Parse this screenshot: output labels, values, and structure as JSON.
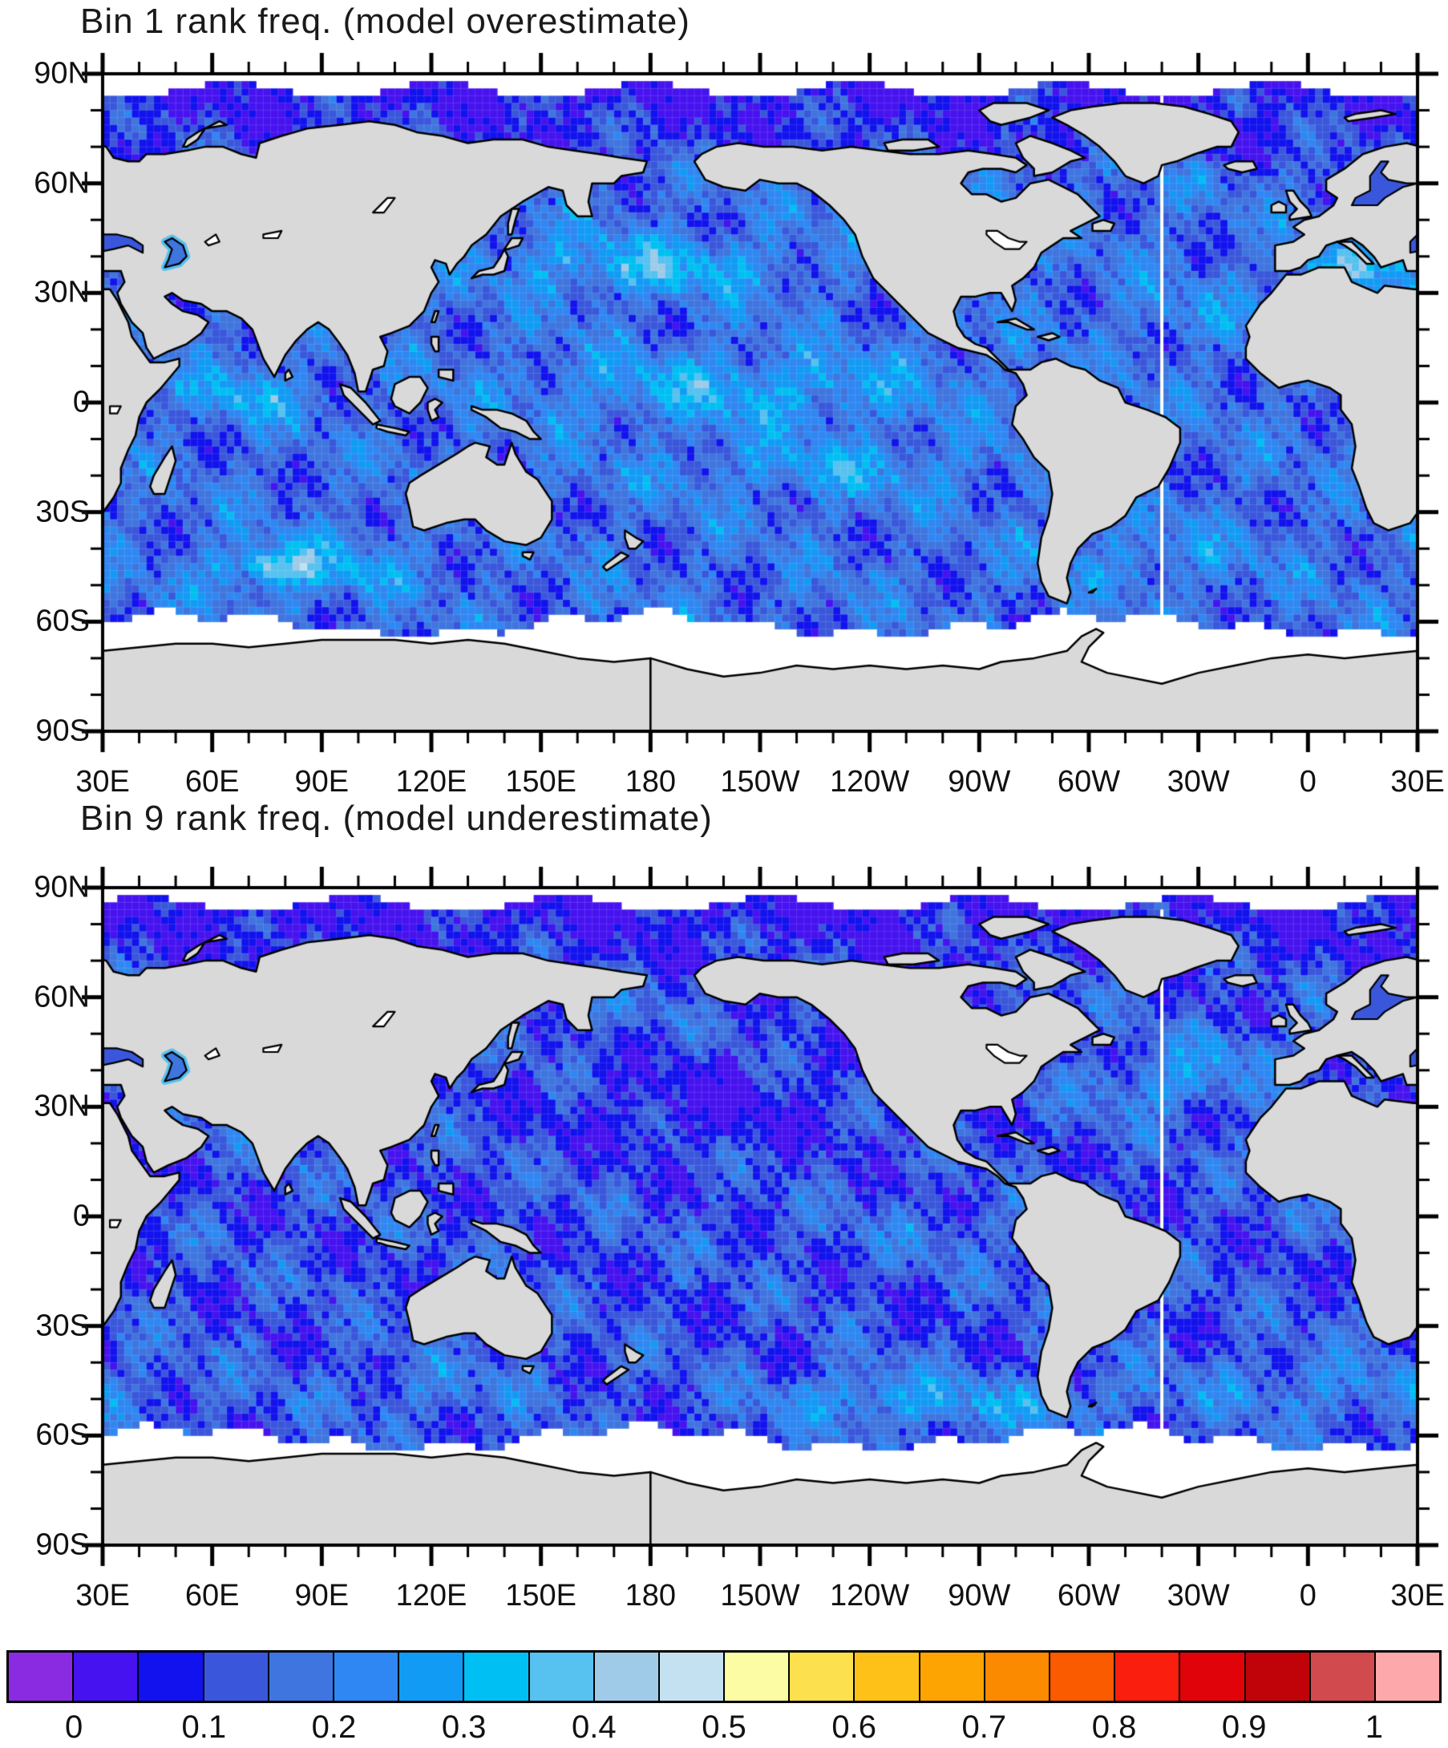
{
  "chart_data": {
    "type": "heatmap",
    "figure_kind": "global map, filled lat-lon field, two stacked panels sharing one colorbar",
    "projection": {
      "name": "equirectangular",
      "lon_range_deg_east": [
        30,
        390
      ],
      "lat_range": [
        -90,
        90
      ],
      "central_longitude_note": "map starts and ends at 30E (Pacific-centered)",
      "land_fill": "#d9d9d9",
      "coastline_color": "#000000",
      "missing_data_seam": "white vertical stripe near 40W in both panels",
      "polar_gaps": "white bands near 90N and poleward of ~60S (sea-ice / no data)"
    },
    "panels": [
      {
        "title": "Bin 1 rank freq. (model overestimate)",
        "x_tick_labels": [
          "30E",
          "60E",
          "90E",
          "120E",
          "150E",
          "180",
          "150W",
          "120W",
          "90W",
          "60W",
          "30W",
          "0",
          "30E"
        ],
        "y_tick_labels": [
          "90N",
          "60N",
          "30N",
          "0",
          "30S",
          "60S",
          "90S"
        ],
        "field_name": "rank frequency",
        "typical_value_range": [
          0.05,
          0.5
        ],
        "regional_summary": [
          {
            "region": "most of global ocean",
            "approx_value": 0.15
          },
          {
            "region": "central equatorial Pacific",
            "approx_value": 0.3
          },
          {
            "region": "northwest/central North Pacific 30-45N",
            "approx_value": 0.35
          },
          {
            "region": "south Indian Ocean 40-50S",
            "approx_value": 0.45
          },
          {
            "region": "western tropical Indian Ocean",
            "approx_value": 0.3
          },
          {
            "region": "Mediterranean Sea",
            "approx_value": 0.4
          },
          {
            "region": "Arctic and subpolar seas",
            "approx_value": 0.1
          }
        ]
      },
      {
        "title": "Bin 9 rank freq. (model underestimate)",
        "x_tick_labels": [
          "30E",
          "60E",
          "90E",
          "120E",
          "150E",
          "180",
          "150W",
          "120W",
          "90W",
          "60W",
          "30W",
          "0",
          "30E"
        ],
        "y_tick_labels": [
          "90N",
          "60N",
          "30N",
          "0",
          "30S",
          "60S",
          "90S"
        ],
        "field_name": "rank frequency",
        "typical_value_range": [
          0.05,
          0.45
        ],
        "regional_summary": [
          {
            "region": "most of global ocean",
            "approx_value": 0.12
          },
          {
            "region": "subtropical North Pacific 15-45N",
            "approx_value": 0.07
          },
          {
            "region": "Southern Ocean 40-60S (South Pacific sector)",
            "approx_value": 0.35
          },
          {
            "region": "North Atlantic 25-45N band",
            "approx_value": 0.3
          },
          {
            "region": "South Atlantic 40-55S",
            "approx_value": 0.25
          },
          {
            "region": "Arctic",
            "approx_value": 0.08
          }
        ]
      }
    ],
    "colorbar": {
      "orientation": "horizontal",
      "n_cells": 22,
      "cell_value_width": 0.05,
      "first_cell_meaning": "below 0",
      "last_cell_meaning": "above 1",
      "tick_labels": [
        "0",
        "0.1",
        "0.2",
        "0.3",
        "0.4",
        "0.5",
        "0.6",
        "0.7",
        "0.8",
        "0.9",
        "1"
      ],
      "tick_boundary_indices": [
        1,
        3,
        5,
        7,
        9,
        11,
        13,
        15,
        17,
        19,
        21
      ],
      "colors": [
        "#8a2be2",
        "#4612ef",
        "#1212ee",
        "#3a57dc",
        "#3f75df",
        "#2e87f2",
        "#129bf5",
        "#00bff2",
        "#57c1f0",
        "#9fcbe8",
        "#c4e1f2",
        "#fcfca4",
        "#fde04d",
        "#fdc117",
        "#fda402",
        "#fc8a00",
        "#fa5a00",
        "#fa1e0e",
        "#e00309",
        "#c00308",
        "#d14a4e",
        "#fda8ab"
      ]
    }
  }
}
